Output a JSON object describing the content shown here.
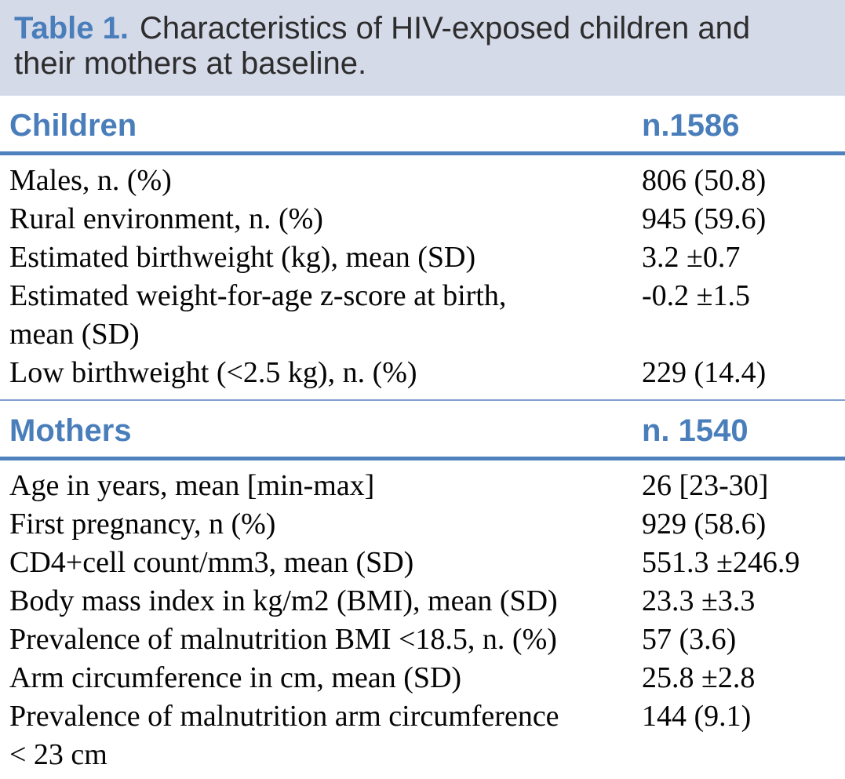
{
  "caption": {
    "label": "Table 1.",
    "text": "Characteristics of HIV-exposed children and their mothers at baseline."
  },
  "colors": {
    "accent_blue": "#4a7ebb",
    "rule_blue": "#4f81bd",
    "thin_rule_blue": "#7f9fce",
    "caption_background": "#d5dae9"
  },
  "sections": [
    {
      "name": "Children",
      "count": "n.1586",
      "rows": [
        {
          "label": "Males, n. (%)",
          "value": "806 (50.8)"
        },
        {
          "label": "Rural environment, n. (%)",
          "value": "945 (59.6)"
        },
        {
          "label": "Estimated birthweight (kg), mean (SD)",
          "value": "3.2 ±0.7"
        },
        {
          "label": "Estimated weight-for-age z-score at birth,\nmean (SD)",
          "value": "-0.2 ±1.5"
        },
        {
          "label": "Low birthweight (<2.5 kg), n. (%)",
          "value": "229 (14.4)"
        }
      ]
    },
    {
      "name": "Mothers",
      "count": "n. 1540",
      "rows": [
        {
          "label": "Age in years, mean [min-max]",
          "value": "26 [23-30]"
        },
        {
          "label": "First pregnancy, n (%)",
          "value": "929 (58.6)"
        },
        {
          "label": "CD4+cell count/mm3, mean (SD)",
          "value": "551.3 ±246.9"
        },
        {
          "label": "Body mass index in kg/m2 (BMI), mean (SD)",
          "value": "23.3 ±3.3"
        },
        {
          "label": "Prevalence of malnutrition BMI <18.5, n. (%)",
          "value": "57 (3.6)"
        },
        {
          "label": "Arm circumference in cm, mean (SD)",
          "value": "25.8 ±2.8"
        },
        {
          "label": "Prevalence of malnutrition arm circumference\n< 23 cm",
          "value": "144 (9.1)"
        }
      ]
    }
  ]
}
